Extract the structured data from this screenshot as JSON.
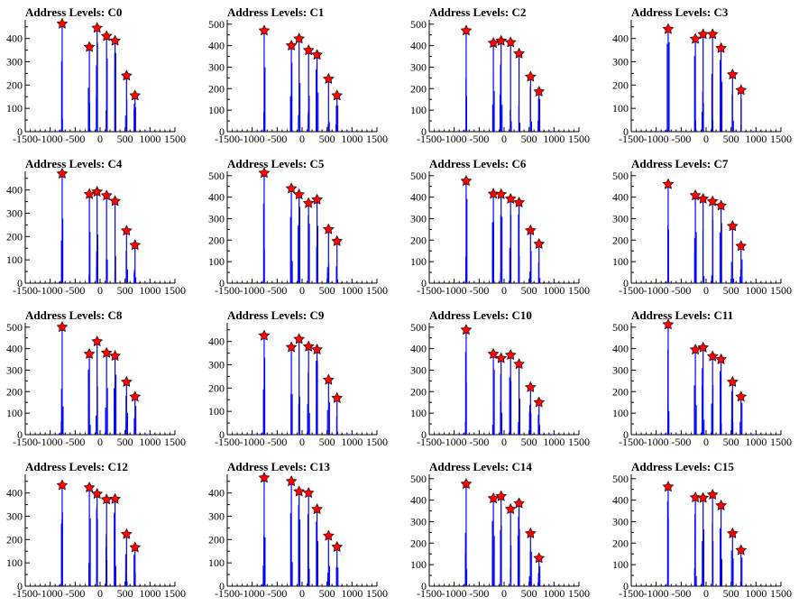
{
  "figure": {
    "background": "#ffffff"
  },
  "colors": {
    "line": "#0000ff",
    "marker_fill": "#ff0000",
    "marker_stroke": "#000000",
    "axis": "#000000"
  },
  "chart_data": [
    {
      "type": "bar",
      "title": "Address Levels: C0",
      "xlim": [
        -1500,
        1500
      ],
      "ylim": [
        0,
        480
      ],
      "yticks": [
        0,
        100,
        200,
        300,
        400
      ],
      "xticks": [
        -1500,
        -1000,
        -500,
        0,
        500,
        1000,
        1500
      ],
      "xtick_labels": [
        "-1500",
        "-1000",
        "-500",
        "0",
        "500",
        "1000",
        "1500"
      ],
      "peaks": {
        "x": [
          -760,
          -215,
          -60,
          130,
          300,
          530,
          700
        ],
        "y": [
          463,
          363,
          445,
          410,
          390,
          240,
          155
        ]
      }
    },
    {
      "type": "bar",
      "title": "Address Levels: C1",
      "xlim": [
        -1500,
        1500
      ],
      "ylim": [
        0,
        520
      ],
      "yticks": [
        0,
        100,
        200,
        300,
        400,
        500
      ],
      "xticks": [
        -1500,
        -1000,
        -500,
        0,
        500,
        1000,
        1500
      ],
      "xtick_labels": [
        "-1500",
        "-1000",
        "-500",
        "0",
        "500",
        "1000",
        "1500"
      ],
      "peaks": {
        "x": [
          -760,
          -215,
          -60,
          130,
          300,
          530,
          700
        ],
        "y": [
          470,
          400,
          432,
          378,
          357,
          245,
          168
        ]
      }
    },
    {
      "type": "bar",
      "title": "Address Levels: C2",
      "xlim": [
        -1500,
        1500
      ],
      "ylim": [
        0,
        520
      ],
      "yticks": [
        0,
        100,
        200,
        300,
        400,
        500
      ],
      "xticks": [
        -1500,
        -1000,
        -500,
        0,
        500,
        1000,
        1500
      ],
      "xtick_labels": [
        "-1500",
        "-1000",
        "-500",
        "0",
        "500",
        "1000",
        "1500"
      ],
      "peaks": {
        "x": [
          -760,
          -215,
          -60,
          130,
          300,
          530,
          700
        ],
        "y": [
          470,
          412,
          422,
          415,
          363,
          255,
          186
        ]
      }
    },
    {
      "type": "bar",
      "title": "Address Levels: C3",
      "xlim": [
        -1500,
        1500
      ],
      "ylim": [
        0,
        480
      ],
      "yticks": [
        0,
        100,
        200,
        300,
        400
      ],
      "xticks": [
        -1500,
        -1000,
        -500,
        0,
        500,
        1000,
        1500
      ],
      "xtick_labels": [
        "-1500",
        "-1000",
        "-500",
        "0",
        "500",
        "1000",
        "1500"
      ],
      "peaks": {
        "x": [
          -760,
          -215,
          -60,
          130,
          300,
          530,
          700
        ],
        "y": [
          440,
          398,
          418,
          418,
          358,
          245,
          178
        ]
      }
    },
    {
      "type": "bar",
      "title": "Address Levels: C4",
      "xlim": [
        -1500,
        1500
      ],
      "ylim": [
        0,
        480
      ],
      "yticks": [
        0,
        100,
        200,
        300,
        400
      ],
      "xticks": [
        -1500,
        -1000,
        -500,
        0,
        500,
        1000,
        1500
      ],
      "xtick_labels": [
        "-1500",
        "-1000",
        "-500",
        "0",
        "500",
        "1000",
        "1500"
      ],
      "peaks": {
        "x": [
          -760,
          -215,
          -60,
          130,
          300,
          530,
          700
        ],
        "y": [
          470,
          382,
          392,
          376,
          352,
          225,
          163
        ]
      }
    },
    {
      "type": "bar",
      "title": "Address Levels: C5",
      "xlim": [
        -1500,
        1500
      ],
      "ylim": [
        0,
        520
      ],
      "yticks": [
        0,
        100,
        200,
        300,
        400,
        500
      ],
      "xticks": [
        -1500,
        -1000,
        -500,
        0,
        500,
        1000,
        1500
      ],
      "xtick_labels": [
        "-1500",
        "-1000",
        "-500",
        "0",
        "500",
        "1000",
        "1500"
      ],
      "peaks": {
        "x": [
          -760,
          -215,
          -60,
          130,
          300,
          530,
          700
        ],
        "y": [
          512,
          440,
          412,
          372,
          388,
          250,
          195
        ]
      }
    },
    {
      "type": "bar",
      "title": "Address Levels: C6",
      "xlim": [
        -1500,
        1500
      ],
      "ylim": [
        0,
        520
      ],
      "yticks": [
        0,
        100,
        200,
        300,
        400,
        500
      ],
      "xticks": [
        -1500,
        -1000,
        -500,
        0,
        500,
        1000,
        1500
      ],
      "xtick_labels": [
        "-1500",
        "-1000",
        "-500",
        "0",
        "500",
        "1000",
        "1500"
      ],
      "peaks": {
        "x": [
          -760,
          -215,
          -60,
          130,
          300,
          530,
          700
        ],
        "y": [
          475,
          415,
          413,
          392,
          375,
          245,
          182
        ]
      }
    },
    {
      "type": "bar",
      "title": "Address Levels: C7",
      "xlim": [
        -1500,
        1500
      ],
      "ylim": [
        0,
        520
      ],
      "yticks": [
        0,
        100,
        200,
        300,
        400,
        500
      ],
      "xticks": [
        -1500,
        -1000,
        -500,
        0,
        500,
        1000,
        1500
      ],
      "xtick_labels": [
        "-1500",
        "-1000",
        "-500",
        "0",
        "500",
        "1000",
        "1500"
      ],
      "peaks": {
        "x": [
          -760,
          -215,
          -60,
          130,
          300,
          530,
          700
        ],
        "y": [
          460,
          408,
          392,
          380,
          360,
          265,
          172
        ]
      }
    },
    {
      "type": "bar",
      "title": "Address Levels: C8",
      "xlim": [
        -1500,
        1500
      ],
      "ylim": [
        0,
        520
      ],
      "yticks": [
        0,
        100,
        200,
        300,
        400,
        500
      ],
      "xticks": [
        -1500,
        -1000,
        -500,
        0,
        500,
        1000,
        1500
      ],
      "xtick_labels": [
        "-1500",
        "-1000",
        "-500",
        "0",
        "500",
        "1000",
        "1500"
      ],
      "peaks": {
        "x": [
          -760,
          -215,
          -60,
          130,
          300,
          530,
          700
        ],
        "y": [
          500,
          375,
          433,
          380,
          366,
          245,
          176
        ]
      }
    },
    {
      "type": "bar",
      "title": "Address Levels: C9",
      "xlim": [
        -1500,
        1500
      ],
      "ylim": [
        0,
        480
      ],
      "yticks": [
        0,
        100,
        200,
        300,
        400
      ],
      "xticks": [
        -1500,
        -1000,
        -500,
        0,
        500,
        1000,
        1500
      ],
      "xtick_labels": [
        "-1500",
        "-1000",
        "-500",
        "0",
        "500",
        "1000",
        "1500"
      ],
      "peaks": {
        "x": [
          -760,
          -215,
          -60,
          130,
          300,
          530,
          700
        ],
        "y": [
          425,
          375,
          410,
          378,
          365,
          235,
          157
        ]
      }
    },
    {
      "type": "bar",
      "title": "Address Levels: C10",
      "xlim": [
        -1500,
        1500
      ],
      "ylim": [
        0,
        520
      ],
      "yticks": [
        0,
        100,
        200,
        300,
        400,
        500
      ],
      "xticks": [
        -1500,
        -1000,
        -500,
        0,
        500,
        1000,
        1500
      ],
      "xtick_labels": [
        "-1500",
        "-1000",
        "-500",
        "0",
        "500",
        "1000",
        "1500"
      ],
      "peaks": {
        "x": [
          -760,
          -215,
          -60,
          130,
          300,
          530,
          700
        ],
        "y": [
          487,
          375,
          355,
          370,
          328,
          220,
          150
        ]
      }
    },
    {
      "type": "bar",
      "title": "Address Levels: C11",
      "xlim": [
        -1500,
        1500
      ],
      "ylim": [
        0,
        520
      ],
      "yticks": [
        0,
        100,
        200,
        300,
        400,
        500
      ],
      "xticks": [
        -1500,
        -1000,
        -500,
        0,
        500,
        1000,
        1500
      ],
      "xtick_labels": [
        "-1500",
        "-1000",
        "-500",
        "0",
        "500",
        "1000",
        "1500"
      ],
      "peaks": {
        "x": [
          -760,
          -215,
          -60,
          130,
          300,
          530,
          700
        ],
        "y": [
          512,
          395,
          405,
          364,
          350,
          245,
          176
        ]
      }
    },
    {
      "type": "bar",
      "title": "Address Levels: C12",
      "xlim": [
        -1500,
        1500
      ],
      "ylim": [
        0,
        480
      ],
      "yticks": [
        0,
        100,
        200,
        300,
        400
      ],
      "xticks": [
        -1500,
        -1000,
        -500,
        0,
        500,
        1000,
        1500
      ],
      "xtick_labels": [
        "-1500",
        "-1000",
        "-500",
        "0",
        "500",
        "1000",
        "1500"
      ],
      "peaks": {
        "x": [
          -760,
          -215,
          -60,
          130,
          300,
          530,
          700
        ],
        "y": [
          433,
          423,
          396,
          372,
          374,
          223,
          166
        ]
      }
    },
    {
      "type": "bar",
      "title": "Address Levels: C13",
      "xlim": [
        -1500,
        1500
      ],
      "ylim": [
        0,
        480
      ],
      "yticks": [
        0,
        100,
        200,
        300,
        400
      ],
      "xticks": [
        -1500,
        -1000,
        -500,
        0,
        500,
        1000,
        1500
      ],
      "xtick_labels": [
        "-1500",
        "-1000",
        "-500",
        "0",
        "500",
        "1000",
        "1500"
      ],
      "peaks": {
        "x": [
          -760,
          -215,
          -60,
          130,
          300,
          530,
          700
        ],
        "y": [
          465,
          450,
          406,
          400,
          330,
          216,
          168
        ]
      }
    },
    {
      "type": "bar",
      "title": "Address Levels: C14",
      "xlim": [
        -1500,
        1500
      ],
      "ylim": [
        0,
        520
      ],
      "yticks": [
        0,
        100,
        200,
        300,
        400,
        500
      ],
      "xticks": [
        -1500,
        -1000,
        -500,
        0,
        500,
        1000,
        1500
      ],
      "xtick_labels": [
        "-1500",
        "-1000",
        "-500",
        "0",
        "500",
        "1000",
        "1500"
      ],
      "peaks": {
        "x": [
          -760,
          -215,
          -60,
          130,
          300,
          530,
          700
        ],
        "y": [
          475,
          408,
          418,
          358,
          385,
          245,
          130
        ]
      }
    },
    {
      "type": "bar",
      "title": "Address Levels: C15",
      "xlim": [
        -1500,
        1500
      ],
      "ylim": [
        0,
        520
      ],
      "yticks": [
        0,
        100,
        200,
        300,
        400,
        500
      ],
      "xticks": [
        -1500,
        -1000,
        -500,
        0,
        500,
        1000,
        1500
      ],
      "xtick_labels": [
        "-1500",
        "-1000",
        "-500",
        "0",
        "500",
        "1000",
        "1500"
      ],
      "peaks": {
        "x": [
          -760,
          -215,
          -60,
          130,
          300,
          530,
          700
        ],
        "y": [
          462,
          412,
          410,
          425,
          375,
          245,
          167
        ]
      }
    }
  ]
}
